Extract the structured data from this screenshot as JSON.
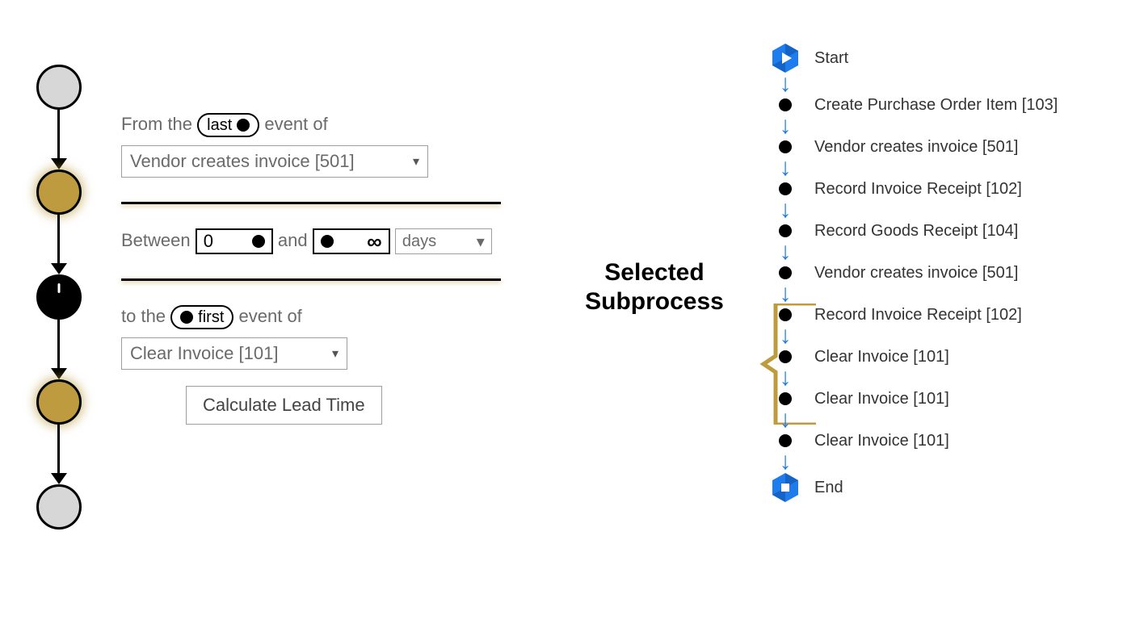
{
  "colors": {
    "gold": "#bd9b3e",
    "blue": "#1f7ced",
    "gray_node": "#d7d7d7",
    "text_muted": "#6a6a6a",
    "border": "#9e9e9e"
  },
  "left_panel": {
    "from_prefix": "From the",
    "from_pill": "last",
    "from_suffix": "event of",
    "from_event": "Vendor creates invoice [501]",
    "between_prefix": "Between",
    "between_min": "0",
    "between_and": "and",
    "between_max": "∞",
    "unit": "days",
    "to_prefix": "to the",
    "to_pill": "first",
    "to_suffix": "event of",
    "to_event": "Clear Invoice [101]",
    "button": "Calculate Lead Time"
  },
  "mini_flow": {
    "nodes": [
      "gray",
      "gold",
      "black",
      "gold",
      "gray"
    ]
  },
  "subprocess_label_1": "Selected",
  "subprocess_label_2": "Subprocess",
  "flow": {
    "start": "Start",
    "end": "End",
    "steps": [
      "Create Purchase Order Item [103]",
      "Vendor creates invoice [501]",
      "Record Invoice Receipt [102]",
      "Record Goods Receipt [104]",
      "Vendor creates invoice [501]",
      "Record Invoice Receipt [102]",
      "Clear Invoice [101]",
      "Clear Invoice [101]",
      "Clear Invoice [101]"
    ],
    "bracket_range": [
      4,
      6
    ]
  }
}
